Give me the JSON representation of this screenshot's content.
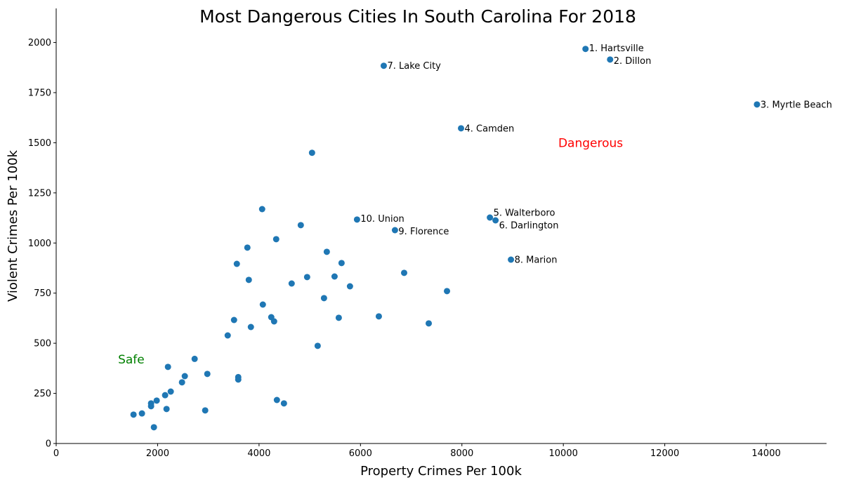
{
  "chart_data": {
    "type": "scatter",
    "title": "Most Dangerous Cities In South Carolina For 2018",
    "xlabel": "Property Crimes Per 100k",
    "ylabel": "Violent Crimes Per 100k",
    "xlim": [
      0,
      15190
    ],
    "ylim": [
      0,
      2170
    ],
    "xticks": [
      0,
      2000,
      4000,
      6000,
      8000,
      10000,
      12000,
      14000
    ],
    "yticks": [
      0,
      250,
      500,
      750,
      1000,
      1250,
      1500,
      1750,
      2000
    ],
    "grid": false,
    "point_color": "#1f77b4",
    "annotations": [
      {
        "text": "Safe",
        "x": 1220,
        "y": 420,
        "color": "#008000"
      },
      {
        "text": "Dangerous",
        "x": 9900,
        "y": 1500,
        "color": "#ff0000"
      }
    ],
    "labeled_points": [
      {
        "label": "1. Hartsville",
        "x": 10437,
        "y": 1968
      },
      {
        "label": "2. Dillon",
        "x": 10922,
        "y": 1915
      },
      {
        "label": "3. Myrtle Beach",
        "x": 13818,
        "y": 1691
      },
      {
        "label": "4. Camden",
        "x": 7983,
        "y": 1572
      },
      {
        "label": "5. Walterboro",
        "x": 8552,
        "y": 1127
      },
      {
        "label": "6. Darlington",
        "x": 8663,
        "y": 1113
      },
      {
        "label": "7. Lake City",
        "x": 6459,
        "y": 1884
      },
      {
        "label": "8. Marion",
        "x": 8967,
        "y": 917
      },
      {
        "label": "9. Florence",
        "x": 6680,
        "y": 1064
      },
      {
        "label": "10. Union",
        "x": 5932,
        "y": 1117
      }
    ],
    "points": [
      [
        5045,
        1450
      ],
      [
        4061,
        1169
      ],
      [
        4338,
        1019
      ],
      [
        4823,
        1089
      ],
      [
        3770,
        977
      ],
      [
        5336,
        956
      ],
      [
        3562,
        896
      ],
      [
        5627,
        900
      ],
      [
        6861,
        851
      ],
      [
        3798,
        816
      ],
      [
        4948,
        830
      ],
      [
        5489,
        833
      ],
      [
        4643,
        798
      ],
      [
        5793,
        784
      ],
      [
        7706,
        760
      ],
      [
        4075,
        693
      ],
      [
        5281,
        725
      ],
      [
        4241,
        630
      ],
      [
        4297,
        609
      ],
      [
        3507,
        616
      ],
      [
        6362,
        634
      ],
      [
        5572,
        627
      ],
      [
        7346,
        599
      ],
      [
        3839,
        581
      ],
      [
        3382,
        539
      ],
      [
        5156,
        487
      ],
      [
        2730,
        422
      ],
      [
        2204,
        382
      ],
      [
        2536,
        336
      ],
      [
        2980,
        347
      ],
      [
        2481,
        305
      ],
      [
        3590,
        331
      ],
      [
        3590,
        319
      ],
      [
        2259,
        259
      ],
      [
        2148,
        241
      ],
      [
        1982,
        214
      ],
      [
        1871,
        200
      ],
      [
        1871,
        186
      ],
      [
        2176,
        172
      ],
      [
        2938,
        165
      ],
      [
        1691,
        150
      ],
      [
        1525,
        144
      ],
      [
        1927,
        81
      ],
      [
        4352,
        217
      ],
      [
        4491,
        200
      ]
    ]
  }
}
